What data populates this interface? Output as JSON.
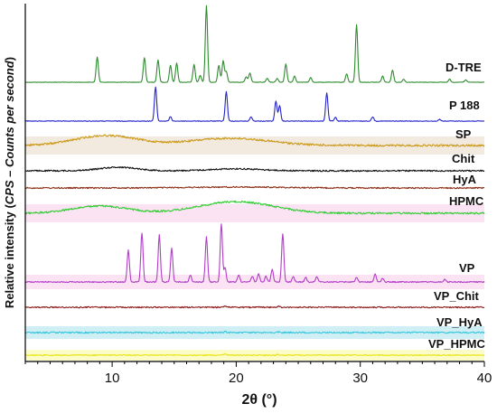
{
  "chart_data": {
    "type": "line",
    "xlabel": "2θ (°)",
    "ylabel_main": "Relative intensity (",
    "ylabel_italic": "CPS – Counts per second",
    "ylabel_end": ")",
    "xlim": [
      3,
      40
    ],
    "xticks": [
      10,
      20,
      30,
      40
    ],
    "xtick_labels": [
      "10",
      "20",
      "30",
      "40"
    ],
    "grid": false,
    "legend": "inline-right",
    "series": [
      {
        "name": "D-TRE",
        "color": "#2e8b2e",
        "band": null,
        "peaks": [
          [
            8.8,
            0.33
          ],
          [
            12.6,
            0.32
          ],
          [
            13.7,
            0.29
          ],
          [
            14.7,
            0.22
          ],
          [
            15.2,
            0.25
          ],
          [
            16.6,
            0.23
          ],
          [
            17.1,
            0.09
          ],
          [
            17.6,
            1.0
          ],
          [
            18.6,
            0.22
          ],
          [
            18.95,
            0.28
          ],
          [
            19.2,
            0.14
          ],
          [
            20.8,
            0.07
          ],
          [
            21.1,
            0.12
          ],
          [
            22.5,
            0.05
          ],
          [
            23.3,
            0.05
          ],
          [
            24.0,
            0.24
          ],
          [
            24.7,
            0.08
          ],
          [
            26.0,
            0.06
          ],
          [
            28.9,
            0.11
          ],
          [
            29.7,
            0.75
          ],
          [
            31.8,
            0.08
          ],
          [
            32.6,
            0.16
          ],
          [
            33.5,
            0.04
          ],
          [
            37.2,
            0.04
          ],
          [
            38.5,
            0.03
          ]
        ],
        "humps": []
      },
      {
        "name": "P 188",
        "color": "#2323c8",
        "band": null,
        "peaks": [
          [
            13.5,
            0.95
          ],
          [
            14.7,
            0.12
          ],
          [
            19.2,
            0.82
          ],
          [
            21.2,
            0.12
          ],
          [
            23.2,
            0.56
          ],
          [
            23.5,
            0.42
          ],
          [
            27.3,
            0.78
          ],
          [
            28.0,
            0.1
          ],
          [
            31.0,
            0.12
          ],
          [
            36.4,
            0.05
          ]
        ],
        "humps": []
      },
      {
        "name": "SP",
        "color": "#cc9a1a",
        "band": "#f2eadf",
        "peaks": [],
        "humps": [
          [
            9.5,
            0.55,
            2.5
          ],
          [
            19.5,
            0.4,
            3.2
          ]
        ]
      },
      {
        "name": "Chit",
        "color": "#111111",
        "band": null,
        "peaks": [],
        "humps": [
          [
            10.5,
            0.5,
            1.5
          ],
          [
            20.0,
            0.28,
            2.0
          ]
        ]
      },
      {
        "name": "HyA",
        "color": "#8b2b12",
        "band": null,
        "peaks": [],
        "humps": [
          [
            20.0,
            0.2,
            4.0
          ]
        ]
      },
      {
        "name": "HPMC",
        "color": "#33cc33",
        "band": "#fbe3f4",
        "peaks": [],
        "humps": [
          [
            9.0,
            0.5,
            2.2
          ],
          [
            20.0,
            0.8,
            3.0
          ]
        ]
      },
      {
        "name": "VP",
        "color": "#b23cc8",
        "band": "#fbe3f4",
        "peaks": [
          [
            11.3,
            0.55
          ],
          [
            12.4,
            0.85
          ],
          [
            13.8,
            0.81
          ],
          [
            14.8,
            0.58
          ],
          [
            16.3,
            0.12
          ],
          [
            17.6,
            0.78
          ],
          [
            18.8,
            1.0
          ],
          [
            19.1,
            0.25
          ],
          [
            20.2,
            0.12
          ],
          [
            21.3,
            0.1
          ],
          [
            21.8,
            0.14
          ],
          [
            22.4,
            0.1
          ],
          [
            22.9,
            0.22
          ],
          [
            23.75,
            0.84
          ],
          [
            24.6,
            0.1
          ],
          [
            25.6,
            0.08
          ],
          [
            26.5,
            0.09
          ],
          [
            29.7,
            0.08
          ],
          [
            31.2,
            0.14
          ],
          [
            31.8,
            0.06
          ],
          [
            36.8,
            0.04
          ]
        ],
        "humps": []
      },
      {
        "name": "VP_Chit",
        "color": "#8b1a1a",
        "band": null,
        "peaks": [
          [
            19.1,
            0.35
          ],
          [
            23.4,
            0.3
          ]
        ],
        "humps": []
      },
      {
        "name": "VP_HyA",
        "color": "#39c6dc",
        "band": "#cfeff5",
        "peaks": [
          [
            19.1,
            0.3
          ],
          [
            23.4,
            0.25
          ]
        ],
        "humps": []
      },
      {
        "name": "VP_HPMC",
        "color": "#e8e414",
        "band": "#fcfcc8",
        "peaks": [
          [
            19.1,
            0.3
          ],
          [
            23.4,
            0.25
          ]
        ],
        "humps": []
      }
    ]
  }
}
